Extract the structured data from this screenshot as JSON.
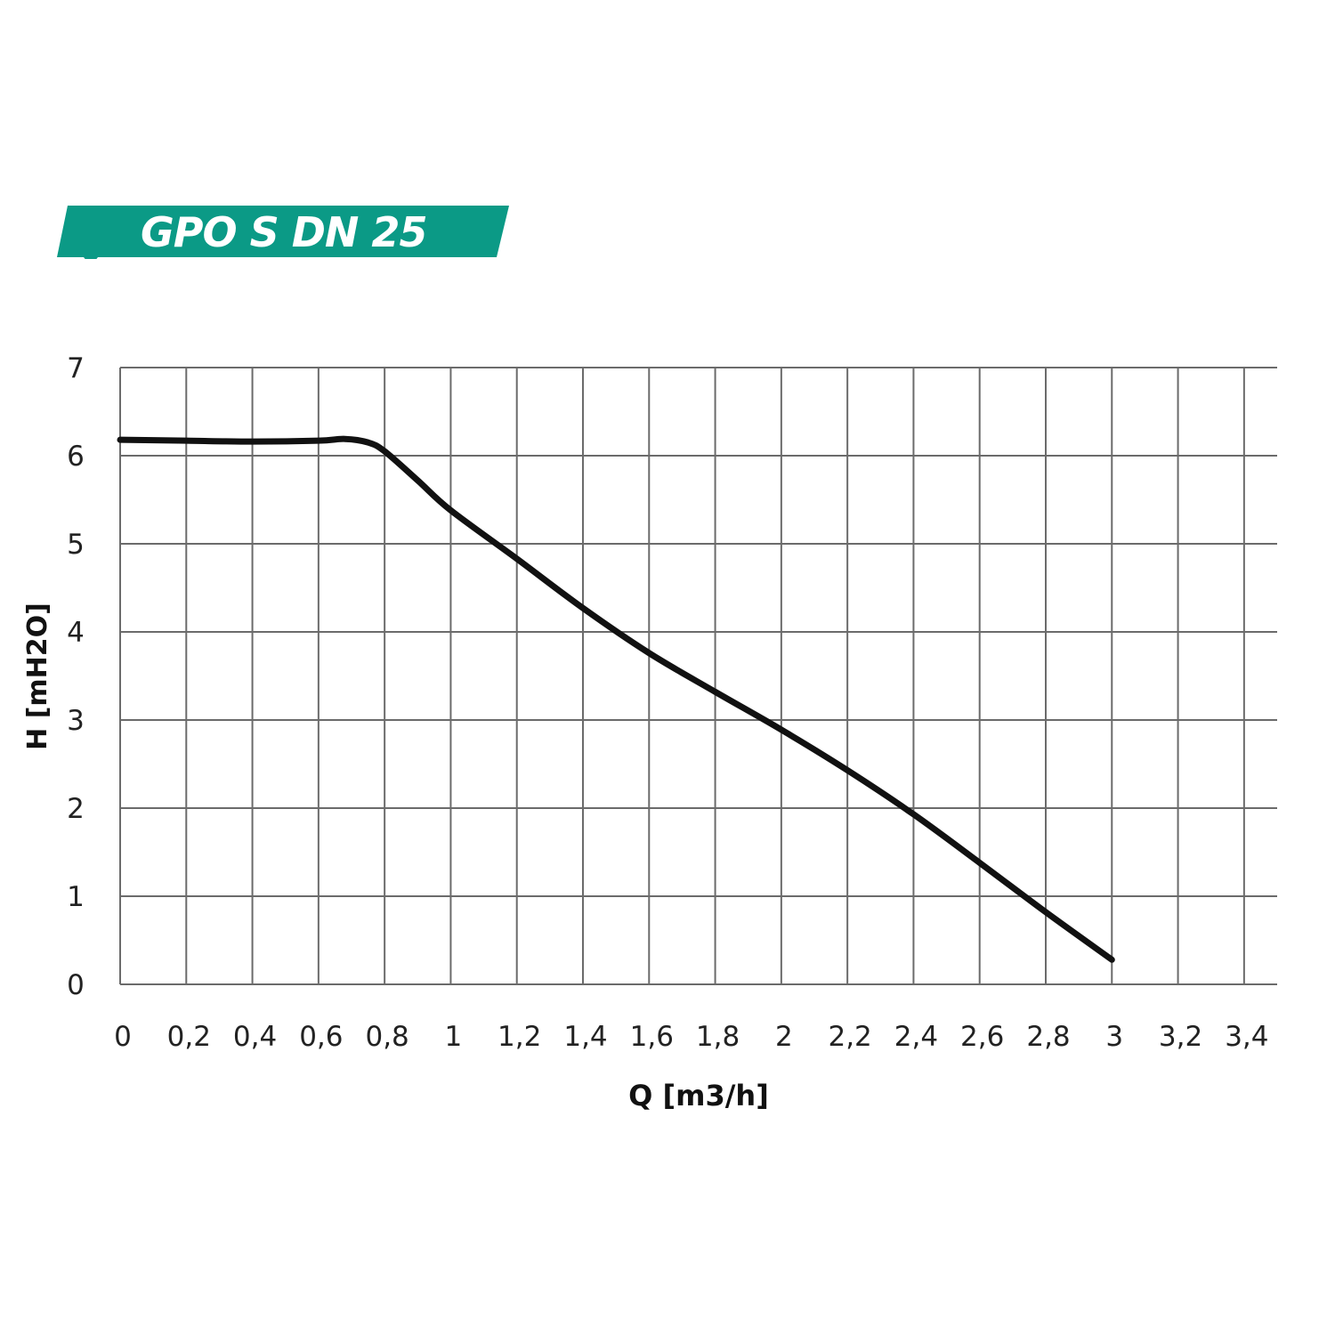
{
  "chart_data": {
    "type": "line",
    "title": "GPO S DN 25",
    "xlabel": "Q [m3/h]",
    "ylabel": "H [mH2O]",
    "xlim": [
      0,
      3.5
    ],
    "ylim": [
      0,
      7
    ],
    "grid": true,
    "x_ticks": [
      "0",
      "0,2",
      "0,4",
      "0,6",
      "0,8",
      "1",
      "1,2",
      "1,4",
      "1,6",
      "1,8",
      "2",
      "2,2",
      "2,4",
      "2,6",
      "2,8",
      "3",
      "3,2",
      "3,4"
    ],
    "y_ticks": [
      "0",
      "1",
      "2",
      "3",
      "4",
      "5",
      "6",
      "7"
    ],
    "series": [
      {
        "color": "#111111",
        "x": [
          0,
          0.2,
          0.4,
          0.6,
          0.68,
          0.75,
          0.8,
          0.9,
          1,
          1.2,
          1.4,
          1.6,
          1.8,
          2,
          2.2,
          2.4,
          2.6,
          2.8,
          3
        ],
        "y": [
          6.18,
          6.17,
          6.16,
          6.17,
          6.19,
          6.15,
          6.05,
          5.72,
          5.38,
          4.83,
          4.27,
          3.76,
          3.32,
          2.89,
          2.43,
          1.93,
          1.38,
          0.82,
          0.28
        ]
      }
    ],
    "colors": {
      "banner": "#0b9a86",
      "grid": "#6b6b6b"
    }
  }
}
